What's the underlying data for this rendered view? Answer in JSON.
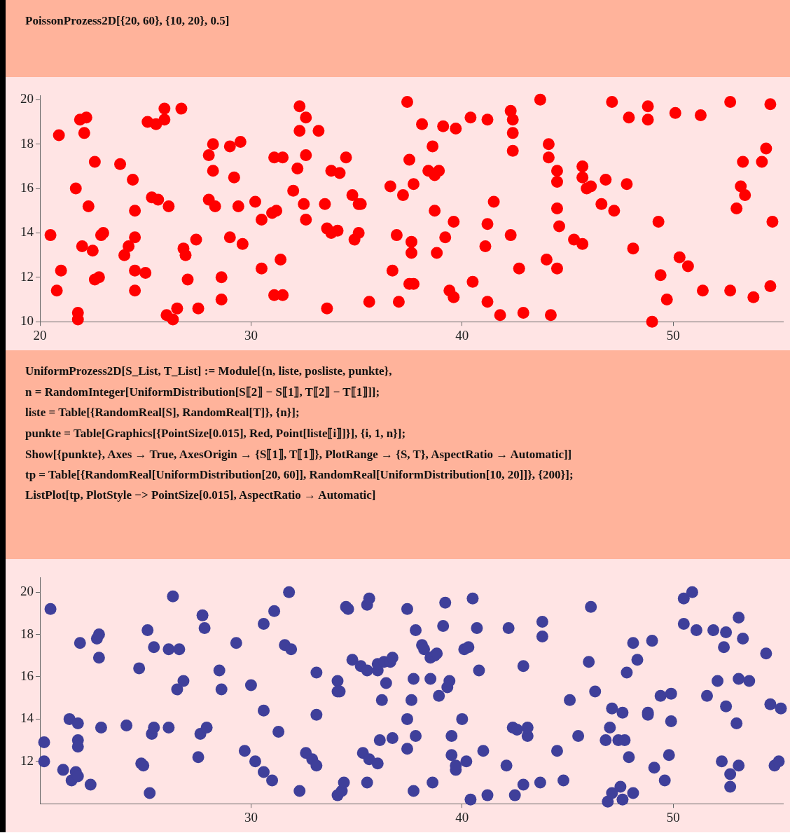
{
  "chart_data": [
    {
      "type": "scatter",
      "title": "PoissonProzess2D[{20, 60}, {10, 20}, 0.5]",
      "color": "#ff0000",
      "marker": "circle",
      "xlim": [
        20,
        55.2
      ],
      "ylim": [
        10,
        20.2
      ],
      "xticks": [
        20,
        30,
        40,
        50
      ],
      "yticks": [
        10,
        12,
        14,
        16,
        18,
        20
      ],
      "x": [
        20.5,
        20.9,
        21.0,
        20.8,
        21.7,
        21.8,
        21.8,
        22.0,
        21.9,
        22.2,
        22.1,
        22.3,
        22.6,
        22.5,
        22.6,
        22.8,
        22.9,
        23.0,
        23.8,
        24.0,
        24.2,
        24.4,
        24.5,
        24.5,
        24.5,
        24.5,
        25.0,
        25.1,
        25.3,
        25.5,
        25.6,
        25.9,
        25.9,
        26.1,
        26.0,
        26.3,
        26.5,
        26.7,
        26.8,
        26.9,
        27.0,
        27.4,
        27.5,
        28.0,
        28.0,
        28.2,
        28.2,
        28.3,
        28.6,
        28.6,
        29.0,
        29.0,
        29.2,
        29.4,
        29.5,
        29.6,
        30.2,
        30.5,
        30.5,
        31.1,
        31.0,
        31.2,
        31.1,
        31.5,
        31.4,
        31.5,
        32.0,
        32.2,
        32.3,
        32.3,
        32.6,
        32.5,
        32.6,
        32.6,
        33.2,
        33.5,
        33.6,
        33.6,
        33.8,
        33.8,
        34.2,
        34.1,
        34.5,
        34.8,
        34.9,
        35.1,
        35.2,
        35.1,
        35.6,
        36.6,
        36.7,
        36.9,
        37.0,
        37.2,
        37.4,
        37.5,
        37.5,
        37.6,
        37.6,
        37.7,
        37.7,
        38.1,
        38.4,
        38.7,
        38.6,
        38.7,
        38.9,
        38.8,
        39.1,
        39.2,
        39.4,
        39.6,
        39.6,
        39.7,
        40.4,
        40.5,
        41.2,
        41.2,
        41.1,
        41.2,
        41.5,
        41.8,
        42.3,
        42.4,
        42.4,
        42.4,
        42.3,
        42.7,
        42.9,
        43.7,
        44.1,
        44.1,
        44.0,
        44.2,
        44.5,
        44.5,
        44.5,
        44.6,
        44.5,
        45.3,
        45.7,
        45.7,
        45.7,
        45.9,
        46.1,
        46.6,
        46.8,
        47.1,
        47.2,
        47.9,
        47.8,
        48.1,
        48.8,
        48.8,
        49.0,
        49.3,
        49.4,
        49.7,
        50.1,
        50.3,
        50.7,
        51.3,
        51.4,
        52.7,
        52.7,
        53.0,
        53.2,
        53.3,
        53.4,
        53.8,
        54.2,
        54.4,
        54.6,
        54.6,
        54.7
      ],
      "values": [
        13.9,
        18.4,
        12.3,
        11.4,
        16.0,
        10.4,
        10.1,
        13.4,
        19.1,
        19.2,
        18.5,
        15.2,
        17.2,
        13.2,
        11.9,
        12.0,
        13.9,
        14.0,
        17.1,
        13.0,
        13.4,
        16.4,
        15.0,
        13.8,
        12.3,
        11.4,
        12.2,
        19.0,
        15.6,
        18.9,
        15.5,
        19.1,
        19.6,
        15.2,
        10.3,
        10.1,
        10.6,
        19.6,
        13.3,
        13.0,
        11.9,
        13.7,
        10.6,
        17.5,
        15.5,
        18.0,
        16.8,
        15.2,
        12.0,
        11.0,
        17.9,
        13.8,
        16.5,
        15.2,
        18.1,
        13.5,
        15.4,
        14.6,
        12.4,
        17.4,
        14.9,
        15.0,
        11.2,
        17.4,
        12.8,
        11.2,
        15.9,
        16.9,
        19.7,
        18.6,
        19.2,
        15.3,
        17.5,
        14.6,
        18.6,
        15.3,
        14.2,
        10.6,
        16.8,
        14.0,
        16.7,
        14.1,
        17.4,
        15.7,
        13.7,
        15.3,
        15.3,
        14.0,
        10.9,
        16.1,
        12.3,
        13.9,
        10.9,
        15.7,
        19.9,
        17.3,
        11.7,
        13.1,
        13.6,
        16.2,
        11.7,
        18.9,
        16.8,
        16.6,
        17.9,
        15.0,
        16.8,
        13.1,
        18.8,
        13.8,
        11.4,
        14.5,
        11.1,
        18.7,
        19.2,
        11.8,
        19.1,
        14.4,
        13.4,
        10.9,
        15.4,
        10.3,
        19.5,
        19.1,
        18.5,
        17.7,
        13.9,
        12.4,
        10.4,
        20.0,
        18.0,
        17.4,
        12.8,
        10.3,
        16.8,
        16.3,
        15.1,
        14.3,
        12.4,
        13.7,
        17.0,
        16.5,
        13.5,
        16.0,
        16.1,
        15.3,
        16.4,
        19.9,
        15.0,
        19.2,
        16.2,
        13.3,
        19.7,
        19.1,
        10.0,
        14.5,
        12.1,
        11.0,
        19.4,
        12.9,
        12.5,
        19.3,
        11.4,
        19.9,
        11.4,
        15.1,
        16.1,
        17.2,
        15.7,
        11.1,
        17.2,
        17.8,
        19.8,
        11.6,
        14.5
      ]
    },
    {
      "type": "scatter",
      "annotations": [
        "UniformProzess2D[S_List, T_List] := Module[{n, liste, posliste, punkte},",
        "n = RandomInteger[UniformDistribution[S⟦2⟧ − S⟦1⟧, T⟦2⟧ − T⟦1⟧]];",
        "liste = Table[{RandomReal[S], RandomReal[T]}, {n}];",
        "punkte = Table[Graphics[{PointSize[0.015], Red, Point[liste⟦i⟧]}], {i, 1, n}];",
        "Show[{punkte}, Axes → True, AxesOrigin → {S⟦1⟧, T⟦1⟧}, PlotRange → {S, T}, AspectRatio → Automatic]]",
        "tp = Table[{RandomReal[UniformDistribution[20, 60]], RandomReal[UniformDistribution[10, 20]]}, {200}];",
        "ListPlot[tp, PlotStyle −> PointSize[0.015], AspectRatio → Automatic]"
      ],
      "color": "#3f3f9a",
      "marker": "circle",
      "xlim": [
        20,
        55.2
      ],
      "ylim": [
        10,
        20.7
      ],
      "xticks": [
        30,
        40,
        50
      ],
      "yticks": [
        12,
        14,
        16,
        18,
        20
      ],
      "x": [
        20.2,
        20.2,
        20.5,
        21.1,
        21.4,
        21.5,
        21.7,
        21.8,
        21.8,
        21.8,
        21.8,
        21.9,
        22.4,
        22.7,
        22.8,
        22.8,
        22.9,
        24.1,
        24.7,
        24.8,
        24.9,
        25.1,
        25.2,
        25.3,
        25.4,
        25.4,
        26.1,
        26.1,
        26.3,
        26.6,
        26.5,
        26.8,
        27.5,
        27.6,
        27.7,
        27.8,
        27.9,
        28.5,
        28.6,
        29.3,
        29.7,
        30.0,
        30.2,
        30.6,
        30.6,
        30.6,
        31.0,
        31.1,
        31.3,
        31.6,
        31.8,
        31.9,
        32.3,
        32.6,
        32.9,
        33.1,
        33.1,
        33.1,
        34.1,
        34.1,
        34.2,
        34.1,
        34.3,
        34.4,
        34.5,
        34.6,
        34.8,
        35.2,
        35.3,
        35.6,
        35.5,
        35.5,
        35.6,
        35.5,
        36.0,
        36.0,
        36.1,
        36.0,
        36.2,
        36.3,
        36.4,
        36.6,
        36.7,
        36.7,
        37.4,
        37.4,
        37.4,
        37.6,
        37.7,
        37.7,
        37.8,
        37.8,
        38.1,
        38.2,
        38.5,
        38.5,
        38.6,
        38.7,
        38.8,
        38.9,
        39.1,
        39.2,
        39.3,
        39.4,
        39.5,
        39.5,
        39.7,
        39.7,
        40.0,
        40.1,
        40.3,
        40.2,
        40.4,
        40.5,
        40.7,
        40.8,
        41.0,
        41.2,
        42.1,
        42.2,
        42.4,
        42.5,
        42.6,
        42.9,
        42.9,
        43.1,
        43.1,
        43.7,
        43.8,
        43.8,
        44.5,
        44.8,
        45.1,
        45.5,
        46.0,
        46.1,
        46.3,
        46.8,
        47.0,
        47.1,
        46.9,
        47.1,
        47.4,
        47.5,
        47.6,
        47.6,
        47.7,
        47.8,
        47.9,
        48.1,
        48.1,
        48.3,
        48.8,
        48.8,
        49.0,
        49.1,
        49.4,
        49.6,
        49.8,
        49.9,
        49.9,
        50.5,
        50.5,
        50.9,
        51.1,
        51.6,
        51.9,
        52.1,
        52.3,
        52.4,
        52.5,
        52.5,
        52.7,
        52.7,
        53.0,
        53.1,
        53.1,
        53.1,
        53.3,
        53.6,
        54.4,
        54.6,
        54.8,
        55.0,
        55.1
      ],
      "values": [
        12.9,
        12.0,
        19.2,
        11.6,
        14.0,
        11.1,
        11.5,
        11.3,
        13.8,
        13.0,
        12.7,
        17.6,
        10.9,
        17.8,
        18.0,
        16.9,
        13.6,
        13.7,
        16.4,
        11.9,
        11.8,
        18.2,
        10.5,
        13.3,
        13.6,
        17.4,
        13.6,
        17.3,
        19.8,
        17.3,
        15.4,
        15.8,
        12.2,
        13.3,
        18.9,
        18.3,
        13.6,
        16.3,
        15.4,
        17.6,
        12.5,
        15.6,
        12.0,
        14.4,
        18.5,
        11.5,
        11.1,
        19.1,
        13.4,
        17.5,
        20.0,
        17.3,
        10.6,
        12.4,
        12.1,
        11.8,
        16.2,
        14.2,
        15.8,
        15.3,
        15.3,
        10.4,
        10.6,
        11.0,
        19.3,
        19.2,
        16.8,
        16.5,
        12.4,
        12.1,
        11.0,
        19.4,
        19.7,
        16.3,
        16.3,
        16.6,
        13.0,
        11.9,
        14.9,
        16.7,
        15.7,
        16.7,
        16.9,
        13.1,
        14.0,
        12.6,
        19.2,
        14.9,
        15.9,
        10.6,
        13.2,
        18.2,
        17.5,
        17.3,
        16.9,
        15.9,
        11.0,
        17.0,
        17.1,
        15.1,
        18.4,
        19.5,
        15.5,
        15.8,
        13.2,
        12.3,
        11.6,
        11.8,
        14.0,
        17.3,
        17.4,
        12.0,
        10.2,
        19.7,
        18.3,
        16.3,
        12.5,
        10.4,
        11.8,
        18.3,
        13.6,
        10.4,
        13.5,
        16.5,
        10.9,
        13.2,
        13.6,
        11.0,
        18.6,
        17.9,
        12.5,
        11.1,
        14.9,
        13.2,
        16.7,
        19.3,
        15.3,
        13.0,
        13.6,
        14.5,
        10.1,
        10.5,
        13.0,
        10.8,
        14.3,
        10.2,
        13.0,
        16.2,
        12.2,
        17.6,
        10.5,
        16.8,
        14.3,
        14.2,
        17.7,
        11.7,
        15.1,
        11.1,
        12.3,
        13.9,
        15.2,
        18.5,
        19.7,
        20.0,
        18.2,
        15.1,
        18.2,
        15.8,
        12.0,
        17.4,
        18.1,
        14.6,
        11.4,
        10.8,
        13.8,
        18.8,
        15.9,
        11.8,
        17.8,
        15.8,
        17.1,
        14.7,
        11.8,
        12.0,
        14.5
      ]
    }
  ]
}
